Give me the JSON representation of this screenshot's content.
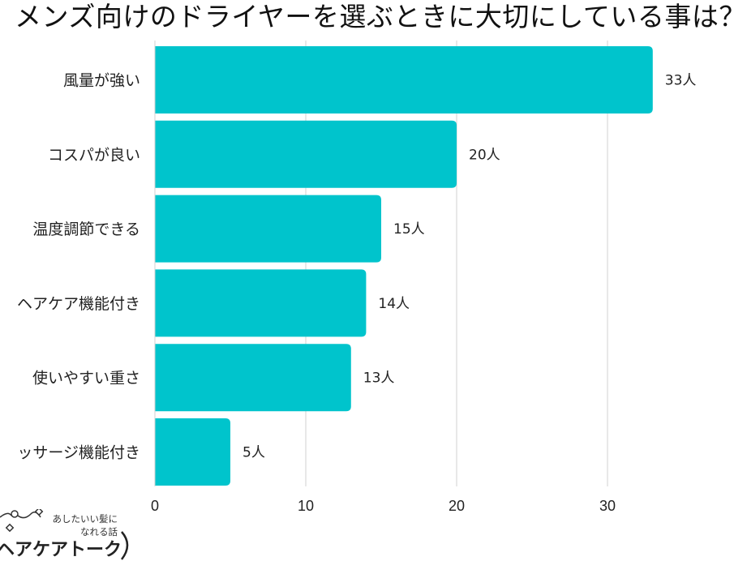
{
  "chart_data": {
    "type": "bar",
    "orientation": "horizontal",
    "title": "メンズ向けのドライヤーを選ぶときに大切にしている事は？",
    "categories": [
      "風量が強い",
      "コスパが良い",
      "温度調節できる",
      "ヘアケア機能付き",
      "使いやすい重さ",
      "ッサージ機能付き"
    ],
    "values": [
      33,
      20,
      15,
      14,
      13,
      5
    ],
    "data_labels": [
      "33人",
      "20人",
      "15人",
      "14人",
      "13人",
      "5人"
    ],
    "xlim": [
      0,
      36
    ],
    "xticks": [
      "0",
      "10",
      "20",
      "30"
    ],
    "grid": true,
    "bar_color": "#00C4CC"
  },
  "logo": {
    "tagline_1": "あしたいい髪に",
    "tagline_2": "なれる話",
    "name": "ヘアケアトーク"
  }
}
